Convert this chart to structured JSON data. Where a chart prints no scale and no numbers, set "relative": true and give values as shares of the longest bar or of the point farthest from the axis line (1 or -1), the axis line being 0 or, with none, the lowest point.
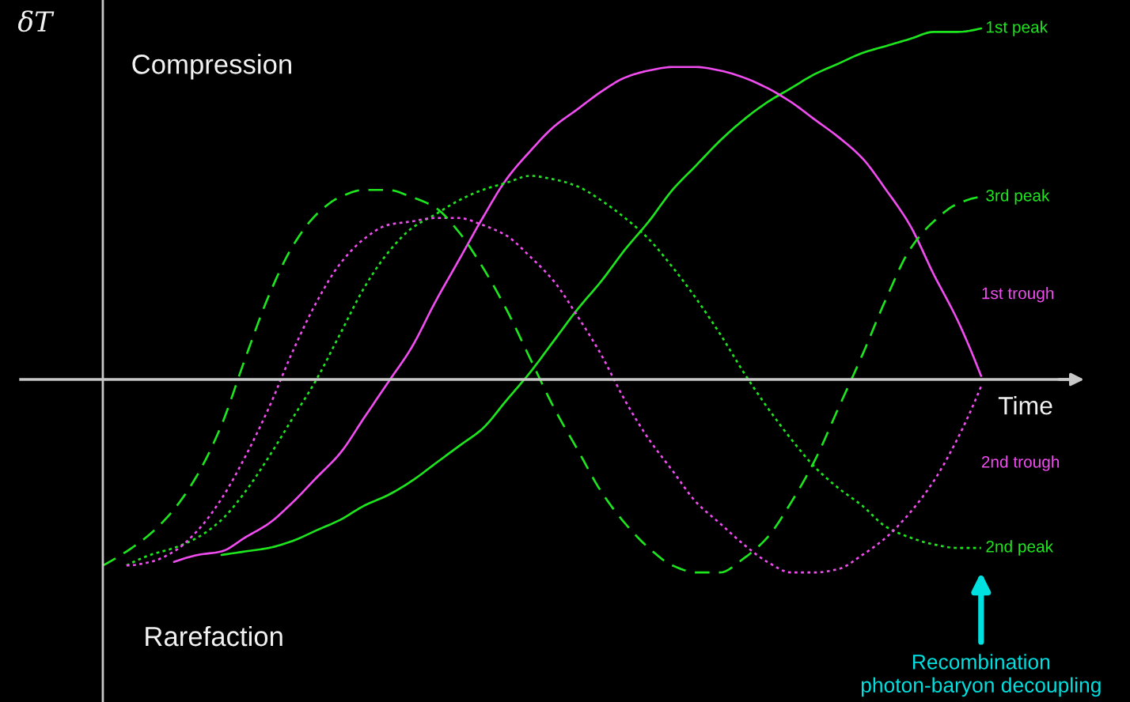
{
  "chart_data": {
    "type": "line",
    "relative": true,
    "xlabel": "Time",
    "ylabel": "δT",
    "categories": [
      null,
      null,
      null,
      null,
      null,
      null,
      null,
      null,
      null,
      null,
      null,
      null,
      null,
      null,
      null,
      null,
      null,
      null,
      null,
      null,
      null,
      null,
      null,
      null,
      null,
      null,
      null,
      null,
      null,
      null,
      null,
      null,
      null,
      null,
      null,
      null,
      null,
      null
    ],
    "series": [
      {
        "name": "1st peak",
        "color": "#1ee61e",
        "line_style": "solid",
        "values": [
          null,
          null,
          null,
          null,
          null,
          -0.5,
          -0.49,
          -0.48,
          -0.46,
          -0.43,
          -0.4,
          -0.36,
          -0.33,
          -0.29,
          -0.24,
          -0.19,
          -0.14,
          -0.06,
          0.02,
          0.11,
          0.2,
          0.28,
          0.37,
          0.45,
          0.54,
          0.61,
          0.68,
          0.74,
          0.79,
          0.83,
          0.87,
          0.9,
          0.93,
          0.95,
          0.97,
          0.99,
          0.99,
          1.0
        ]
      },
      {
        "name": "1st trough",
        "color": "#f04cf0",
        "line_style": "solid",
        "values": [
          null,
          null,
          null,
          -0.52,
          -0.5,
          -0.49,
          -0.45,
          -0.41,
          -0.35,
          -0.28,
          -0.21,
          -0.11,
          -0.01,
          0.09,
          0.22,
          0.34,
          0.46,
          0.57,
          0.65,
          0.72,
          0.77,
          0.82,
          0.86,
          0.88,
          0.89,
          0.89,
          0.88,
          0.86,
          0.83,
          0.79,
          0.74,
          0.69,
          0.63,
          0.54,
          0.44,
          0.3,
          0.17,
          0.01
        ]
      },
      {
        "name": "2nd peak",
        "color": "#1ee61e",
        "line_style": "dotted",
        "values": [
          null,
          -0.53,
          -0.5,
          -0.48,
          -0.45,
          -0.4,
          -0.32,
          -0.22,
          -0.11,
          0.0,
          0.13,
          0.26,
          0.36,
          0.43,
          0.47,
          0.51,
          0.54,
          0.56,
          0.58,
          0.57,
          0.55,
          0.51,
          0.46,
          0.4,
          0.32,
          0.23,
          0.13,
          0.02,
          -0.08,
          -0.17,
          -0.25,
          -0.31,
          -0.36,
          -0.42,
          -0.45,
          -0.47,
          -0.48,
          -0.48
        ]
      },
      {
        "name": "2nd trough",
        "color": "#f04cf0",
        "line_style": "dotted",
        "values": [
          null,
          -0.53,
          -0.52,
          -0.49,
          -0.43,
          -0.34,
          -0.22,
          -0.08,
          0.08,
          0.22,
          0.33,
          0.4,
          0.44,
          0.45,
          0.46,
          0.46,
          0.44,
          0.41,
          0.35,
          0.28,
          0.18,
          0.07,
          -0.06,
          -0.17,
          -0.26,
          -0.35,
          -0.41,
          -0.47,
          -0.52,
          -0.55,
          -0.55,
          -0.54,
          -0.5,
          -0.45,
          -0.38,
          -0.29,
          -0.17,
          -0.02
        ]
      },
      {
        "name": "3rd peak",
        "color": "#1ee61e",
        "line_style": "dashed",
        "values": [
          -0.53,
          -0.49,
          -0.44,
          -0.37,
          -0.27,
          -0.13,
          0.06,
          0.24,
          0.38,
          0.47,
          0.52,
          0.54,
          0.54,
          0.52,
          0.49,
          0.42,
          0.32,
          0.2,
          0.06,
          -0.08,
          -0.2,
          -0.32,
          -0.41,
          -0.48,
          -0.53,
          -0.55,
          -0.55,
          -0.51,
          -0.45,
          -0.35,
          -0.23,
          -0.08,
          0.07,
          0.23,
          0.37,
          0.45,
          0.5,
          0.52
        ]
      }
    ],
    "annotations": [
      "Compression",
      "Rarefaction",
      "Recombination\nphoton-baryon decoupling"
    ]
  }
}
